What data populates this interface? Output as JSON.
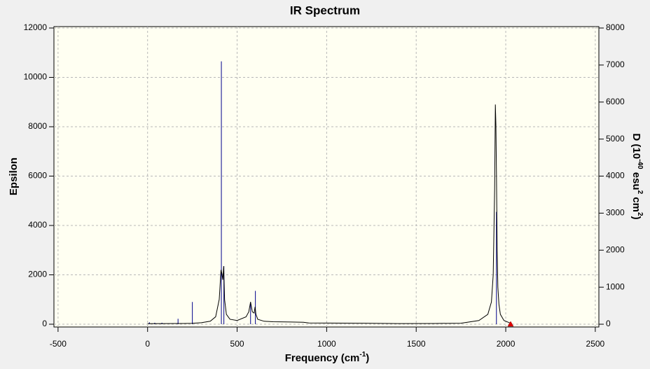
{
  "chart_data": {
    "type": "line",
    "title": "IR Spectrum",
    "x_label": [
      "Frequency (cm",
      "-1",
      ")"
    ],
    "y_label": "Epsilon",
    "y2_label": [
      "D (10",
      "-40",
      " esu",
      "2",
      " cm",
      "2",
      ")"
    ],
    "xlim": [
      -523,
      2520
    ],
    "ylim": [
      -113,
      12057
    ],
    "y2lim": [
      -75,
      8038
    ],
    "xticks": [
      -500,
      0,
      500,
      1000,
      1500,
      2000,
      2500
    ],
    "yticks": [
      0,
      2000,
      4000,
      6000,
      8000,
      10000,
      12000
    ],
    "y2ticks": [
      0,
      1000,
      2000,
      3000,
      4000,
      5000,
      6000,
      7000,
      8000
    ],
    "grid": true,
    "series": [
      {
        "type": "stick",
        "color": "#00008b",
        "x": [
          10,
          40,
          80,
          170,
          250,
          412,
          426,
          575,
          602,
          1948
        ],
        "values": [
          80,
          60,
          60,
          220,
          900,
          10650,
          2350,
          900,
          1350,
          4550
        ]
      },
      {
        "type": "line",
        "color": "#000000",
        "x": [
          0,
          100,
          200,
          250,
          300,
          350,
          380,
          400,
          410,
          415,
          420,
          425,
          430,
          440,
          460,
          500,
          550,
          565,
          575,
          585,
          595,
          600,
          605,
          615,
          650,
          700,
          800,
          870,
          900,
          1000,
          1200,
          1360,
          1400,
          1600,
          1750,
          1850,
          1900,
          1920,
          1930,
          1938,
          1942,
          1945,
          1948,
          1952,
          1956,
          1962,
          1970,
          1990,
          2030
        ],
        "values": [
          20,
          25,
          30,
          35,
          60,
          120,
          300,
          1000,
          2200,
          2050,
          1800,
          2350,
          1000,
          400,
          200,
          150,
          300,
          500,
          900,
          500,
          450,
          700,
          400,
          200,
          120,
          100,
          90,
          80,
          50,
          45,
          40,
          30,
          25,
          30,
          40,
          150,
          400,
          900,
          2000,
          5500,
          8900,
          8100,
          6200,
          3000,
          1500,
          800,
          400,
          150,
          30
        ]
      }
    ]
  }
}
